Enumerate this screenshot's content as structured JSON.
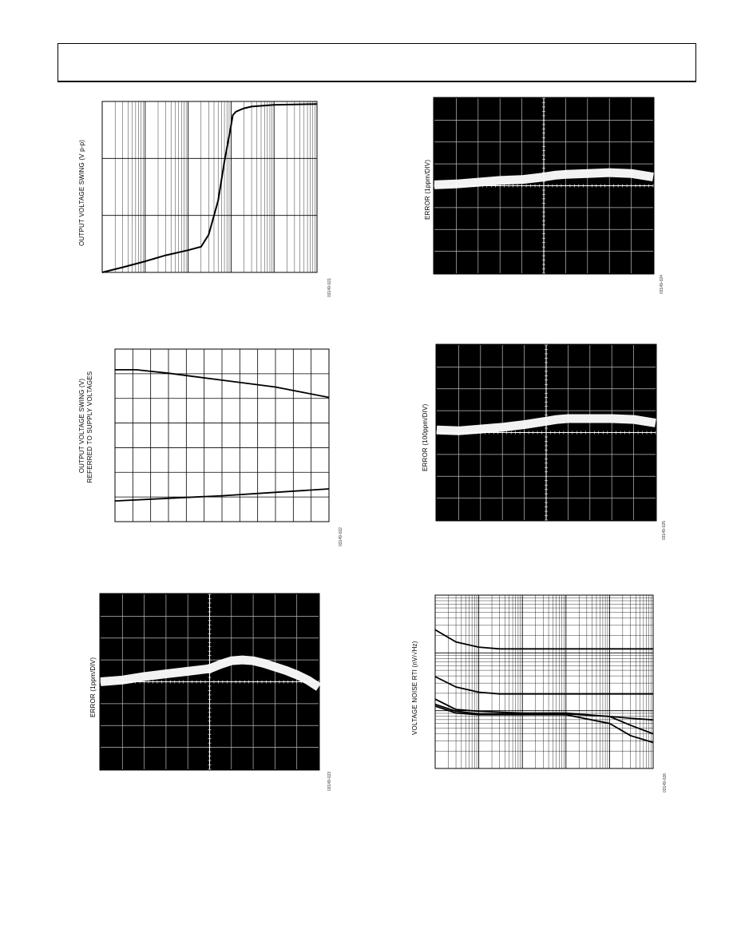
{
  "header": {},
  "chart_data": [
    {
      "id": "fig1",
      "type": "line",
      "figure_id": "03149-021",
      "ylabel": "OUTPUT VOLTAGE SWING (V p-p)",
      "x_scale": "log",
      "x": [
        1,
        3,
        10,
        30,
        100,
        200,
        300,
        500,
        700,
        1000,
        1100,
        1300,
        1600,
        2000,
        3000,
        10000,
        100000
      ],
      "y": [
        0.0,
        0.03,
        0.065,
        0.1,
        0.13,
        0.15,
        0.22,
        0.42,
        0.65,
        0.86,
        0.92,
        0.94,
        0.95,
        0.96,
        0.97,
        0.98,
        0.985
      ],
      "grid": true
    },
    {
      "id": "fig2",
      "type": "line",
      "figure_id": "03149-022",
      "ylabel_line1": "OUTPUT VOLTAGE SWING (V)",
      "ylabel_line2": "REFERRED TO SUPPLY VOLTAGES",
      "series": [
        {
          "x": [
            0,
            0.1,
            0.25,
            0.5,
            0.75,
            1.0
          ],
          "y": [
            0.88,
            0.88,
            0.86,
            0.82,
            0.78,
            0.72
          ]
        },
        {
          "x": [
            0,
            0.25,
            0.5,
            0.75,
            1.0
          ],
          "y": [
            0.12,
            0.135,
            0.15,
            0.17,
            0.19
          ]
        }
      ],
      "grid": true
    },
    {
      "id": "fig3",
      "type": "line",
      "figure_id": "03149-023",
      "ylabel": "ERROR (1ppm/DIV)",
      "style": "scope",
      "x": [
        0,
        0.1,
        0.2,
        0.3,
        0.4,
        0.5,
        0.55,
        0.6,
        0.65,
        0.7,
        0.75,
        0.8,
        0.85,
        0.9,
        0.95,
        1.0
      ],
      "y": [
        0.5,
        0.51,
        0.53,
        0.545,
        0.56,
        0.575,
        0.6,
        0.62,
        0.625,
        0.62,
        0.605,
        0.585,
        0.565,
        0.54,
        0.51,
        0.47
      ],
      "grid": true
    },
    {
      "id": "fig4",
      "type": "line",
      "figure_id": "03149-024",
      "ylabel": "ERROR (1ppm/DIV)",
      "style": "scope",
      "x": [
        0,
        0.1,
        0.2,
        0.3,
        0.4,
        0.5,
        0.55,
        0.6,
        0.7,
        0.8,
        0.9,
        1.0
      ],
      "y": [
        0.505,
        0.51,
        0.52,
        0.53,
        0.535,
        0.55,
        0.56,
        0.565,
        0.57,
        0.575,
        0.57,
        0.55
      ],
      "grid": true
    },
    {
      "id": "fig5",
      "type": "line",
      "figure_id": "03149-025",
      "ylabel": "ERROR (100ppm/DIV)",
      "style": "scope",
      "x": [
        0,
        0.1,
        0.2,
        0.3,
        0.4,
        0.5,
        0.55,
        0.6,
        0.7,
        0.8,
        0.9,
        1.0
      ],
      "y": [
        0.515,
        0.51,
        0.52,
        0.53,
        0.545,
        0.565,
        0.575,
        0.58,
        0.58,
        0.58,
        0.575,
        0.555
      ],
      "grid": true
    },
    {
      "id": "fig6",
      "type": "line",
      "figure_id": "03149-026",
      "ylabel": "VOLTAGE NOISE RTI (nV/√Hz)",
      "x_scale": "log",
      "y_scale": "log",
      "series": [
        {
          "x": [
            1,
            3,
            10,
            30,
            100,
            1000,
            10000,
            100000
          ],
          "y": [
            0.8,
            0.73,
            0.7,
            0.69,
            0.69,
            0.69,
            0.69,
            0.69
          ]
        },
        {
          "x": [
            1,
            3,
            10,
            30,
            100,
            1000,
            10000,
            100000
          ],
          "y": [
            0.53,
            0.47,
            0.44,
            0.43,
            0.43,
            0.43,
            0.43,
            0.43
          ]
        },
        {
          "x": [
            1,
            3,
            10,
            30,
            100,
            1000,
            10000,
            30000,
            100000
          ],
          "y": [
            0.4,
            0.34,
            0.33,
            0.325,
            0.32,
            0.32,
            0.3,
            0.25,
            0.2
          ]
        },
        {
          "x": [
            1,
            3,
            10,
            30,
            100,
            1000,
            10000,
            30000,
            100000
          ],
          "y": [
            0.37,
            0.33,
            0.315,
            0.315,
            0.315,
            0.315,
            0.3,
            0.29,
            0.28
          ]
        },
        {
          "x": [
            1,
            3,
            10,
            30,
            100,
            1000,
            10000,
            30000,
            100000
          ],
          "y": [
            0.36,
            0.32,
            0.31,
            0.31,
            0.31,
            0.31,
            0.26,
            0.19,
            0.15
          ]
        }
      ],
      "grid": true
    }
  ]
}
